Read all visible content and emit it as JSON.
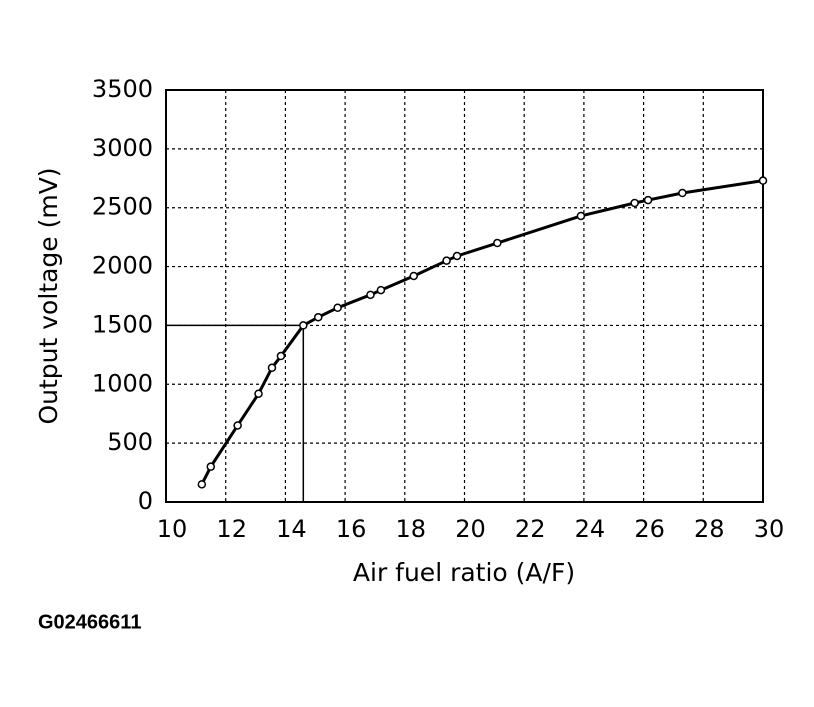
{
  "chart_data": {
    "type": "line",
    "x_label": "Air fuel ratio (A/F)",
    "y_label": "Output voltage (mV)",
    "caption": "G02466611",
    "x": [
      11.2,
      11.5,
      12.4,
      13.1,
      13.55,
      13.85,
      14.6,
      15.1,
      15.75,
      16.85,
      17.2,
      18.3,
      19.4,
      19.75,
      21.1,
      23.9,
      25.7,
      26.15,
      27.3,
      30
    ],
    "values": [
      150,
      300,
      650,
      920,
      1140,
      1240,
      1500,
      1570,
      1650,
      1760,
      1800,
      1920,
      2050,
      2090,
      2200,
      2430,
      2540,
      2565,
      2625,
      2730
    ],
    "color": "#000000",
    "reference": {
      "x": 14.6,
      "y": 1500
    },
    "xlim": [
      10,
      30
    ],
    "xticks": [
      10,
      12,
      14,
      16,
      18,
      20,
      22,
      24,
      26,
      28,
      30
    ],
    "ylim": [
      0,
      3500
    ],
    "yticks": [
      0,
      500,
      1000,
      1500,
      2000,
      2500,
      3000,
      3500
    ],
    "grid": true
  }
}
